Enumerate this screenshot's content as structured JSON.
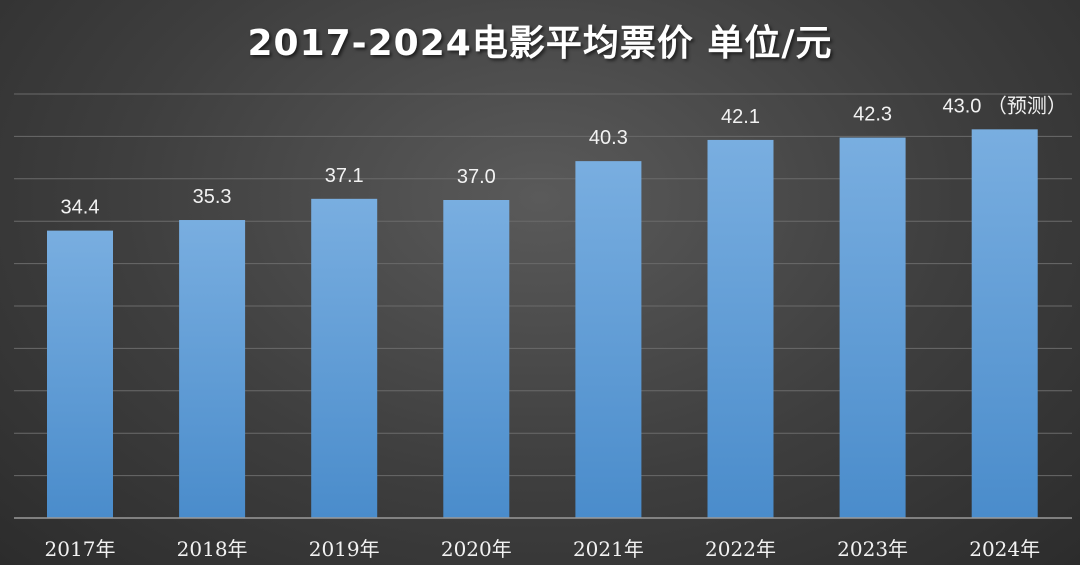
{
  "chart_data": {
    "type": "bar",
    "title": "2017-2024电影平均票价 单位/元",
    "categories": [
      "2017年",
      "2018年",
      "2019年",
      "2020年",
      "2021年",
      "2022年",
      "2023年",
      "2024年"
    ],
    "values": [
      34.4,
      35.3,
      37.1,
      37.0,
      40.3,
      42.1,
      42.3,
      43.0
    ],
    "value_labels": [
      "34.4",
      "35.3",
      "37.1",
      "37.0",
      "40.3",
      "42.1",
      "42.3",
      "43.0 （预测）"
    ],
    "highlight_label_index": 7,
    "ylim": [
      10,
      46
    ],
    "grid": true,
    "colors": {
      "bar_top": "#79aee0",
      "bar_bottom": "#4a8ccb",
      "label": "#f2f2f2",
      "highlight": "#ff1a1a"
    }
  }
}
